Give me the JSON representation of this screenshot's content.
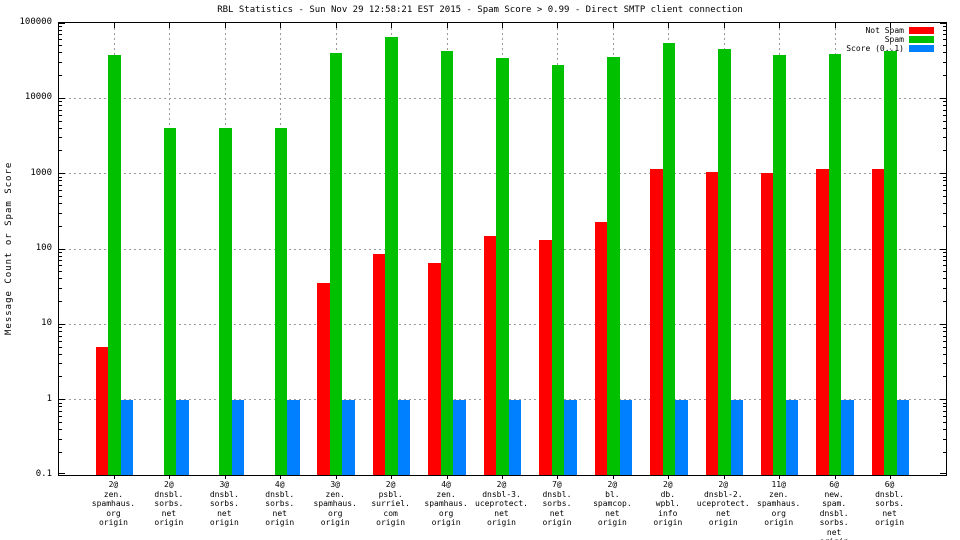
{
  "title": "RBL Statistics - Sun Nov 29 12:58:21 EST 2015 - Spam Score > 0.99 - Direct SMTP client connection",
  "chart_data": {
    "type": "bar",
    "title": "RBL Statistics - Sun Nov 29 12:58:21 EST 2015 - Spam Score > 0.99 - Direct SMTP client connection",
    "xlabel": "",
    "ylabel": "Message Count or Spam Score",
    "y_scale": "log",
    "ylim": [
      0.1,
      100000
    ],
    "y_ticks": [
      "100000",
      "10000",
      "1000",
      "100",
      "10",
      "1",
      "0.1"
    ],
    "grid": true,
    "legend_position": "top-right",
    "categories": [
      [
        "2@",
        "zen.",
        "spamhaus.",
        "org",
        "origin"
      ],
      [
        "2@",
        "dnsbl.",
        "sorbs.",
        "net",
        "origin"
      ],
      [
        "3@",
        "dnsbl.",
        "sorbs.",
        "net",
        "origin"
      ],
      [
        "4@",
        "dnsbl.",
        "sorbs.",
        "net",
        "origin"
      ],
      [
        "3@",
        "zen.",
        "spamhaus.",
        "org",
        "origin"
      ],
      [
        "2@",
        "psbl.",
        "surriel.",
        "com",
        "origin"
      ],
      [
        "4@",
        "zen.",
        "spamhaus.",
        "org",
        "origin"
      ],
      [
        "2@",
        "dnsbl-3.",
        "uceprotect.",
        "net",
        "origin"
      ],
      [
        "7@",
        "dnsbl.",
        "sorbs.",
        "net",
        "origin"
      ],
      [
        "2@",
        "bl.",
        "spamcop.",
        "net",
        "origin"
      ],
      [
        "2@",
        "db.",
        "wpbl.",
        "info",
        "origin"
      ],
      [
        "2@",
        "dnsbl-2.",
        "uceprotect.",
        "net",
        "origin"
      ],
      [
        "11@",
        "zen.",
        "spamhaus.",
        "org",
        "origin"
      ],
      [
        "6@",
        "new.",
        "spam.",
        "dnsbl.",
        "sorbs.",
        "net",
        "origin"
      ],
      [
        "6@",
        "dnsbl.",
        "sorbs.",
        "net",
        "origin"
      ]
    ],
    "series": [
      {
        "name": "Not Spam",
        "color": "#ff0000",
        "values": [
          5,
          null,
          null,
          null,
          35,
          85,
          65,
          150,
          130,
          230,
          1150,
          1060,
          1030,
          1150,
          1150
        ]
      },
      {
        "name": "Spam",
        "color": "#00c000",
        "values": [
          38000,
          4000,
          4000,
          4000,
          40000,
          65000,
          43000,
          34000,
          28000,
          35000,
          54000,
          45000,
          38000,
          39000,
          43000
        ]
      },
      {
        "name": "Score (0..1)",
        "color": "#0080ff",
        "values": [
          1,
          1,
          1,
          1,
          1,
          1,
          1,
          1,
          1,
          1,
          1,
          1,
          1,
          1,
          1
        ]
      }
    ]
  }
}
